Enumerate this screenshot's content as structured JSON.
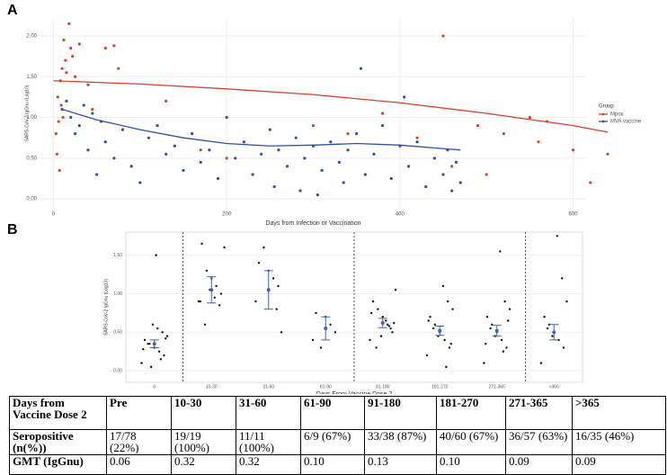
{
  "chart_data": [
    {
      "type": "scatter",
      "panel_label": "A",
      "x_label": "Days from Infection or Vaccination",
      "y_label": "SARS-CoV-2 IgGnu (Log10)",
      "xlim": [
        -15,
        615
      ],
      "ylim": [
        -0.12,
        2.22
      ],
      "xticks": [
        0,
        200,
        400,
        600
      ],
      "yticks": [
        {
          "value": 0,
          "label": "0.00"
        },
        {
          "value": 0.5,
          "label": "0.50"
        },
        {
          "value": 1,
          "label": "1.00"
        },
        {
          "value": 1.5,
          "label": "1.50"
        },
        {
          "value": 2,
          "label": "2.00"
        }
      ],
      "legend_title": "Group",
      "legend": "right",
      "grid": true,
      "series": [
        {
          "name": "Mpox",
          "color": "#d9412b",
          "x": [
            5,
            8,
            10,
            12,
            14,
            15,
            18,
            20,
            22,
            25,
            3,
            6,
            9,
            4,
            7,
            11,
            30,
            40,
            45,
            60,
            70,
            75,
            130,
            170,
            200,
            300,
            340,
            380,
            420,
            450,
            460,
            490,
            520,
            550,
            570,
            620,
            640,
            560,
            600,
            500
          ],
          "y": [
            1.25,
            1.45,
            1.6,
            1.95,
            1.7,
            1.55,
            2.15,
            1.85,
            1.75,
            1.5,
            0.8,
            0.95,
            1.15,
            0.55,
            0.35,
            1.0,
            1.9,
            1.4,
            1.1,
            1.85,
            1.88,
            1.6,
            1.2,
            0.6,
            0.5,
            0.9,
            0.8,
            1.05,
            0.75,
            2.0,
            0.4,
            0.9,
            0.8,
            1.0,
            0.95,
            0.2,
            0.55,
            0.7,
            0.6,
            0.3
          ]
        },
        {
          "name": "MVA vaccine",
          "color": "#2d4fb0",
          "x": [
            10,
            15,
            20,
            25,
            30,
            35,
            40,
            45,
            50,
            55,
            60,
            70,
            80,
            90,
            100,
            110,
            120,
            130,
            140,
            150,
            160,
            170,
            180,
            190,
            200,
            210,
            220,
            230,
            240,
            250,
            255,
            260,
            270,
            280,
            285,
            290,
            300,
            305,
            310,
            320,
            330,
            335,
            340,
            350,
            355,
            360,
            370,
            380,
            390,
            400,
            405,
            410,
            420,
            430,
            440,
            450,
            455,
            460,
            465,
            470
          ],
          "y": [
            1.1,
            1.2,
            1.0,
            0.8,
            0.9,
            1.15,
            0.6,
            1.05,
            0.3,
            0.95,
            0.7,
            0.5,
            0.85,
            0.4,
            0.2,
            0.75,
            0.9,
            0.55,
            0.65,
            0.35,
            0.8,
            0.45,
            0.6,
            0.25,
            1.0,
            0.5,
            0.7,
            0.3,
            0.55,
            0.85,
            0.15,
            0.6,
            0.4,
            0.75,
            0.1,
            0.5,
            0.65,
            0.05,
            0.35,
            0.7,
            0.45,
            0.2,
            0.6,
            0.8,
            1.6,
            0.3,
            0.55,
            0.9,
            0.25,
            0.65,
            1.25,
            0.4,
            0.7,
            0.15,
            0.5,
            0.3,
            0.6,
            0.1,
            0.45,
            0.2
          ]
        }
      ],
      "fit_lines": [
        {
          "color": "#d9412b",
          "x": [
            0,
            100,
            200,
            300,
            400,
            500,
            600,
            640
          ],
          "y": [
            1.45,
            1.41,
            1.35,
            1.28,
            1.18,
            1.05,
            0.9,
            0.82
          ]
        },
        {
          "color": "#2d4fb0",
          "x": [
            10,
            50,
            100,
            150,
            200,
            250,
            300,
            350,
            400,
            470
          ],
          "y": [
            1.1,
            0.97,
            0.85,
            0.75,
            0.68,
            0.65,
            0.66,
            0.68,
            0.66,
            0.6
          ]
        }
      ]
    },
    {
      "type": "strip",
      "panel_label": "B",
      "x_label": "Days From Vaccine Dose 2",
      "y_label": "SARS-CoV-2 IgGnu (Log10)",
      "color": "#3d63b8",
      "ylim": [
        -0.15,
        1.8
      ],
      "yticks": [
        {
          "value": 0,
          "label": "0.00"
        },
        {
          "value": 0.5,
          "label": "0.50"
        },
        {
          "value": 1,
          "label": "1.00"
        },
        {
          "value": 1.5,
          "label": "1.50"
        }
      ],
      "categories": [
        "0",
        "10-30",
        "31-60",
        "61-90",
        "91-180",
        "181-270",
        "271-365",
        ">365"
      ],
      "means": [
        0.35,
        1.05,
        1.05,
        0.55,
        0.62,
        0.52,
        0.52,
        0.5
      ],
      "errors": [
        0.05,
        0.17,
        0.25,
        0.15,
        0.06,
        0.06,
        0.07,
        0.1
      ],
      "points": [
        [
          0.1,
          0.2,
          0.25,
          0.3,
          0.35,
          0.4,
          0.45,
          0.5,
          0.55,
          0.6,
          0.35,
          0.28,
          0.42,
          0.15,
          1.5,
          0.05
        ],
        [
          0.9,
          1.0,
          1.1,
          1.2,
          1.3,
          1.65,
          1.6,
          0.85,
          0.95,
          1.05,
          0.6,
          0.9
        ],
        [
          0.9,
          1.1,
          1.2,
          1.3,
          1.6,
          1.4,
          0.5,
          0.8
        ],
        [
          0.4,
          0.5,
          0.6,
          0.7,
          0.3,
          0.75
        ],
        [
          0.4,
          0.5,
          0.6,
          0.7,
          0.8,
          0.9,
          1.05,
          0.55,
          0.65,
          0.45,
          0.3,
          0.75,
          0.62,
          0.58
        ],
        [
          0.2,
          0.3,
          0.4,
          0.5,
          0.6,
          0.7,
          0.8,
          0.9,
          1.1,
          0.45,
          0.55,
          0.65,
          0.35,
          0.05
        ],
        [
          0.1,
          0.3,
          0.4,
          0.5,
          0.6,
          0.7,
          0.8,
          0.9,
          1.55,
          0.45,
          0.55,
          0.35,
          0.65,
          0.25
        ],
        [
          0.1,
          0.3,
          0.4,
          0.5,
          0.6,
          0.7,
          0.9,
          1.2,
          1.75,
          0.45,
          0.55
        ]
      ]
    }
  ],
  "table": {
    "rows": [
      [
        "Days from Vaccine Dose 2",
        "Pre",
        "10-30",
        "31-60",
        "61-90",
        "91-180",
        "181-270",
        "271-365",
        ">365"
      ],
      [
        "Seropositive (n(%))",
        "17/78 (22%)",
        "19/19 (100%)",
        "11/11 (100%)",
        "6/9 (67%)",
        "33/38 (87%)",
        "40/60 (67%)",
        "36/57 (63%)",
        "16/35 (46%)"
      ],
      [
        "GMT (IgGnu)",
        "0.06",
        "0.32",
        "0.32",
        "0.10",
        "0.13",
        "0.10",
        "0.09",
        "0.09"
      ]
    ]
  }
}
